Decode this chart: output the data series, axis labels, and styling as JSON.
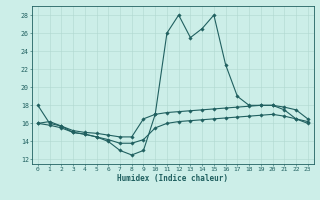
{
  "xlabel": "Humidex (Indice chaleur)",
  "xlim": [
    -0.5,
    23.5
  ],
  "ylim": [
    11.5,
    29.0
  ],
  "yticks": [
    12,
    14,
    16,
    18,
    20,
    22,
    24,
    26,
    28
  ],
  "xticks": [
    0,
    1,
    2,
    3,
    4,
    5,
    6,
    7,
    8,
    9,
    10,
    11,
    12,
    13,
    14,
    15,
    16,
    17,
    18,
    19,
    20,
    21,
    22,
    23
  ],
  "xtick_labels": [
    "0",
    "1",
    "2",
    "3",
    "4",
    "5",
    "6",
    "7",
    "8",
    "9",
    "10",
    "11",
    "12",
    "13",
    "14",
    "15",
    "16",
    "17",
    "18",
    "19",
    "20",
    "21",
    "22",
    "23"
  ],
  "line_color": "#206060",
  "bg_color": "#cceee8",
  "grid_color": "#b0d8d0",
  "line1_y": [
    18,
    16,
    15.7,
    15.0,
    14.8,
    14.5,
    14.0,
    13.0,
    12.5,
    13.0,
    17.0,
    26.0,
    28.0,
    25.5,
    26.5,
    28.0,
    22.5,
    19.0,
    18.0,
    18.0,
    18.0,
    17.5,
    16.5,
    16.0
  ],
  "line2_y": [
    16.0,
    16.2,
    15.7,
    15.2,
    15.0,
    14.9,
    14.7,
    14.5,
    14.5,
    16.5,
    17.0,
    17.2,
    17.3,
    17.4,
    17.5,
    17.6,
    17.7,
    17.8,
    17.9,
    18.0,
    18.0,
    17.8,
    17.5,
    16.5
  ],
  "line3_y": [
    16.0,
    15.8,
    15.5,
    15.0,
    14.8,
    14.5,
    14.2,
    13.8,
    13.8,
    14.2,
    15.5,
    16.0,
    16.2,
    16.3,
    16.4,
    16.5,
    16.6,
    16.7,
    16.8,
    16.9,
    17.0,
    16.8,
    16.5,
    16.2
  ]
}
